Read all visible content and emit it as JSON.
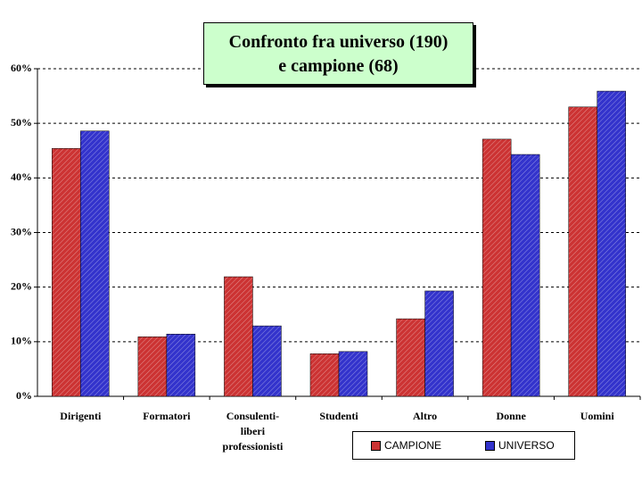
{
  "chart_data": {
    "type": "bar",
    "title": "Confronto fra universo (190)\ne campione (68)",
    "categories": [
      "Dirigenti",
      "Formatori",
      "Consulenti-\nliberi\nprofessionisti",
      "Studenti",
      "Altro",
      "Donne",
      "Uomini"
    ],
    "series": [
      {
        "name": "CAMPIONE",
        "color": "#cc3333",
        "values": [
          45.4,
          10.9,
          21.9,
          7.8,
          14.2,
          47.1,
          53.0
        ]
      },
      {
        "name": "UNIVERSO",
        "color": "#3333cc",
        "values": [
          48.6,
          11.4,
          12.9,
          8.2,
          19.3,
          44.3,
          55.9
        ]
      }
    ],
    "ylim": [
      0,
      60
    ],
    "yticks": [
      {
        "value": 0,
        "label": "0%"
      },
      {
        "value": 10,
        "label": "10%"
      },
      {
        "value": 20,
        "label": "20%"
      },
      {
        "value": 30,
        "label": "30%"
      },
      {
        "value": 40,
        "label": "40%"
      },
      {
        "value": 50,
        "label": "50%"
      },
      {
        "value": 60,
        "label": "60%"
      }
    ],
    "grid": true
  }
}
